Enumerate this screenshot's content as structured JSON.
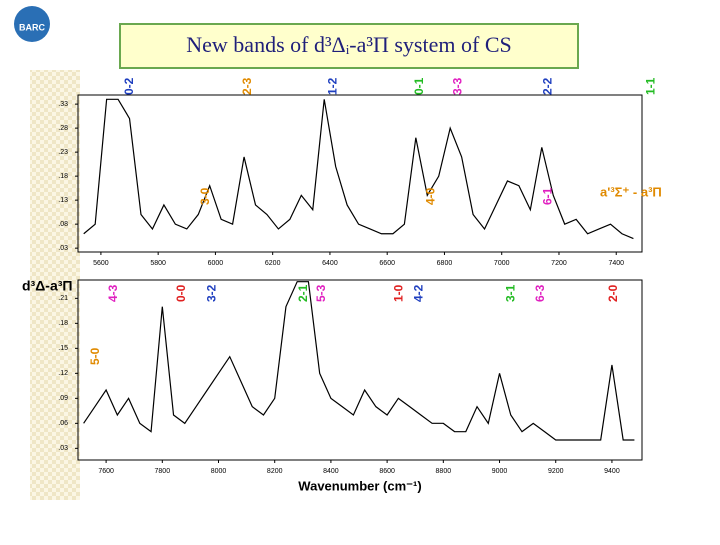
{
  "header": {
    "title": "New bands of  d³Δᵢ-a³Π system of CS",
    "logo": "BARC"
  },
  "chart_data": [
    {
      "type": "line",
      "x": [
        5540,
        5580,
        5620,
        5660,
        5700,
        5740,
        5780,
        5820,
        5860,
        5900,
        5940,
        5980,
        6020,
        6060,
        6100,
        6140,
        6180,
        6220,
        6260,
        6300,
        6340,
        6380,
        6420,
        6460,
        6500,
        6540,
        6580,
        6620,
        6660,
        6700,
        6740,
        6780,
        6820,
        6860,
        6900,
        6940,
        6980,
        7020,
        7060,
        7100,
        7140,
        7180,
        7220,
        7260,
        7300,
        7340,
        7380,
        7420,
        7460
      ],
      "series": [
        {
          "color": "#000000",
          "values": [
            0.06,
            0.08,
            0.34,
            0.34,
            0.3,
            0.1,
            0.07,
            0.12,
            0.08,
            0.07,
            0.1,
            0.16,
            0.09,
            0.08,
            0.22,
            0.12,
            0.1,
            0.07,
            0.09,
            0.14,
            0.11,
            0.34,
            0.2,
            0.12,
            0.08,
            0.07,
            0.06,
            0.06,
            0.08,
            0.26,
            0.14,
            0.18,
            0.28,
            0.22,
            0.1,
            0.07,
            0.12,
            0.17,
            0.16,
            0.11,
            0.24,
            0.14,
            0.08,
            0.09,
            0.06,
            0.07,
            0.08,
            0.06,
            0.05
          ]
        }
      ],
      "xlim": [
        5520,
        7490
      ],
      "xticks": [
        5600,
        5800,
        6000,
        6200,
        6400,
        6600,
        6800,
        7000,
        7200,
        7400
      ],
      "ylim": [
        0.022,
        0.349
      ],
      "yticks": [
        {
          "value": 0.03,
          "label": ".03"
        },
        {
          "value": 0.08,
          "label": ".08"
        },
        {
          "value": 0.13,
          "label": ".13"
        },
        {
          "value": 0.18,
          "label": ".18"
        },
        {
          "value": 0.23,
          "label": ".23"
        },
        {
          "value": 0.28,
          "label": ".28"
        },
        {
          "value": 0.33,
          "label": ".33"
        }
      ],
      "annotations": [
        {
          "text": "0-2",
          "x": 5687,
          "color": "#1f3fbf"
        },
        {
          "text": "2-3",
          "x": 6100,
          "color": "#e08a00"
        },
        {
          "text": "1-2",
          "x": 6397,
          "color": "#1f3fbf"
        },
        {
          "text": "0-1",
          "x": 6700,
          "color": "#22bb22"
        },
        {
          "text": "3-3",
          "x": 6834,
          "color": "#e020c0"
        },
        {
          "text": "2-2",
          "x": 7148,
          "color": "#1f3fbf"
        },
        {
          "text": "1-1",
          "x": 7508,
          "color": "#22bb22"
        }
      ],
      "lower_annotations": [
        {
          "text": "3-0",
          "x": 5953,
          "color": "#e08a00"
        },
        {
          "text": "4-0",
          "x": 6740,
          "color": "#e08a00"
        },
        {
          "text": "6-1",
          "x": 7148,
          "color": "#e020c0"
        }
      ],
      "note": {
        "text": "a'³Σ⁺ - a³Π",
        "color": "#e08a00"
      }
    },
    {
      "type": "line",
      "x": [
        7520,
        7560,
        7600,
        7640,
        7680,
        7720,
        7760,
        7800,
        7840,
        7880,
        7920,
        7960,
        8000,
        8040,
        8080,
        8120,
        8160,
        8200,
        8240,
        8280,
        8320,
        8360,
        8400,
        8440,
        8480,
        8520,
        8560,
        8600,
        8640,
        8680,
        8720,
        8760,
        8800,
        8840,
        8880,
        8920,
        8960,
        9000,
        9040,
        9080,
        9120,
        9160,
        9200,
        9240,
        9280,
        9320,
        9360,
        9400,
        9440,
        9480
      ],
      "series": [
        {
          "color": "#000000",
          "values": [
            0.06,
            0.08,
            0.1,
            0.07,
            0.09,
            0.06,
            0.05,
            0.2,
            0.07,
            0.06,
            0.08,
            0.1,
            0.12,
            0.14,
            0.11,
            0.08,
            0.07,
            0.09,
            0.2,
            0.23,
            0.23,
            0.12,
            0.09,
            0.08,
            0.07,
            0.1,
            0.08,
            0.07,
            0.09,
            0.08,
            0.07,
            0.06,
            0.06,
            0.05,
            0.05,
            0.08,
            0.06,
            0.12,
            0.07,
            0.05,
            0.06,
            0.05,
            0.04,
            0.04,
            0.04,
            0.04,
            0.04,
            0.13,
            0.04,
            0.04
          ]
        }
      ],
      "xlim": [
        7500,
        9507
      ],
      "xticks": [
        7600,
        7800,
        8000,
        8200,
        8400,
        8600,
        8800,
        9000,
        9200,
        9400
      ],
      "ylim": [
        0.016,
        0.232
      ],
      "yticks": [
        {
          "value": 0.03,
          "label": ".03"
        },
        {
          "value": 0.06,
          "label": ".06"
        },
        {
          "value": 0.09,
          "label": ".09"
        },
        {
          "value": 0.12,
          "label": ".12"
        },
        {
          "value": 0.15,
          "label": ".15"
        },
        {
          "value": 0.18,
          "label": ".18"
        },
        {
          "value": 0.21,
          "label": ".21"
        }
      ],
      "annotations": [
        {
          "text": "4-3",
          "x": 7614,
          "color": "#e020c0"
        },
        {
          "text": "0-0",
          "x": 7856,
          "color": "#e02020"
        },
        {
          "text": "3-2",
          "x": 7963,
          "color": "#1f3fbf"
        },
        {
          "text": "2-1",
          "x": 8290,
          "color": "#22bb22"
        },
        {
          "text": "5-3",
          "x": 8354,
          "color": "#e020c0"
        },
        {
          "text": "1-0",
          "x": 8630,
          "color": "#e02020"
        },
        {
          "text": "4-2",
          "x": 8701,
          "color": "#1f3fbf"
        },
        {
          "text": "3-1",
          "x": 9028,
          "color": "#22bb22"
        },
        {
          "text": "6-3",
          "x": 9132,
          "color": "#e020c0"
        },
        {
          "text": "2-0",
          "x": 9392,
          "color": "#e02020"
        }
      ],
      "lower_annotations": [
        {
          "text": "5-0",
          "x": 7550,
          "color": "#e08a00"
        }
      ],
      "note": {
        "text": "d³Δ-a³Π",
        "color": "#000000"
      },
      "xlabel": "Wavenumber (cm⁻¹)"
    }
  ]
}
